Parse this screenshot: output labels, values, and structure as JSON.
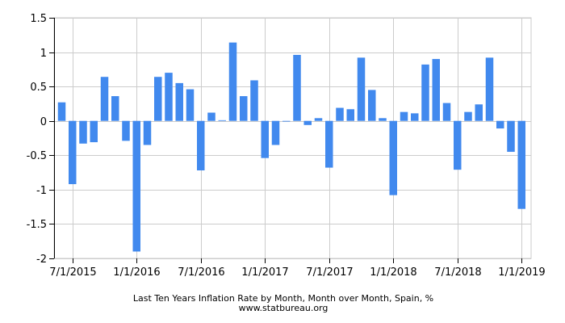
{
  "chart_data": {
    "type": "bar",
    "title": "Last Ten Years Inflation Rate by Month, Month over Month, Spain, %",
    "source": "www.statbureau.org",
    "xlabel": "",
    "ylabel": "",
    "ylim": [
      -2,
      1.5
    ],
    "y_ticks": [
      1.5,
      1,
      0.5,
      0,
      -0.5,
      -1,
      -1.5,
      -2
    ],
    "y_tick_labels": [
      "1.5",
      "1",
      "0.5",
      "0",
      "-0.5",
      "-1",
      "-1.5",
      "-2"
    ],
    "x_ticks": [
      {
        "label": "7/1/2015",
        "index": 1
      },
      {
        "label": "1/1/2016",
        "index": 7
      },
      {
        "label": "7/1/2016",
        "index": 13
      },
      {
        "label": "1/1/2017",
        "index": 19
      },
      {
        "label": "7/1/2017",
        "index": 25
      },
      {
        "label": "1/1/2018",
        "index": 31
      },
      {
        "label": "7/1/2018",
        "index": 37
      },
      {
        "label": "1/1/2019",
        "index": 43
      }
    ],
    "grid": true,
    "legend": "none",
    "colors": {
      "bar": "#4189ee",
      "grid": "#cccccc",
      "axis": "#000000"
    },
    "categories": [
      "2015-06",
      "2015-07",
      "2015-08",
      "2015-09",
      "2015-10",
      "2015-11",
      "2015-12",
      "2016-01",
      "2016-02",
      "2016-03",
      "2016-04",
      "2016-05",
      "2016-06",
      "2016-07",
      "2016-08",
      "2016-09",
      "2016-10",
      "2016-11",
      "2016-12",
      "2017-01",
      "2017-02",
      "2017-03",
      "2017-04",
      "2017-05",
      "2017-06",
      "2017-07",
      "2017-08",
      "2017-09",
      "2017-10",
      "2017-11",
      "2017-12",
      "2018-01",
      "2018-02",
      "2018-03",
      "2018-04",
      "2018-05",
      "2018-06",
      "2018-07",
      "2018-08",
      "2018-09",
      "2018-10",
      "2018-11",
      "2018-12",
      "2019-01"
    ],
    "values": [
      0.27,
      -0.92,
      -0.33,
      -0.31,
      0.64,
      0.36,
      -0.29,
      -1.9,
      -0.35,
      0.64,
      0.7,
      0.55,
      0.46,
      -0.72,
      0.12,
      0.01,
      1.14,
      0.36,
      0.59,
      -0.54,
      -0.35,
      -0.01,
      0.96,
      -0.06,
      0.04,
      -0.68,
      0.19,
      0.17,
      0.92,
      0.45,
      0.04,
      -1.08,
      0.13,
      0.11,
      0.82,
      0.9,
      0.26,
      -0.71,
      0.13,
      0.24,
      0.92,
      -0.11,
      -0.45,
      -1.28
    ]
  }
}
